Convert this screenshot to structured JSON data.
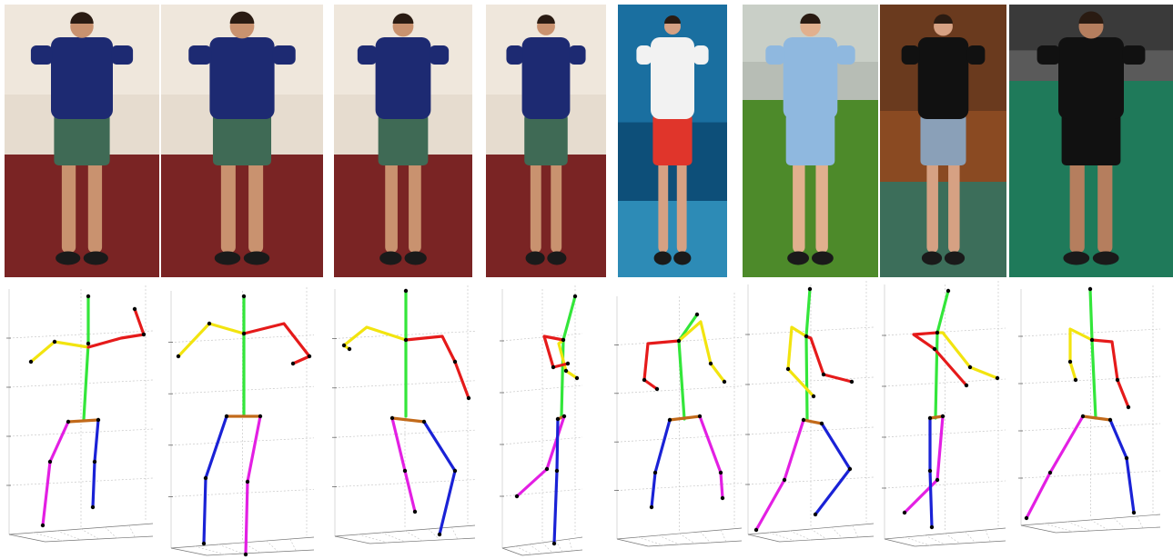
{
  "figure": {
    "photos": [
      {
        "id": "lab-1",
        "scene": "lab",
        "shirt": "#1d2a72",
        "shorts": "#3f6a55",
        "skin": "#c9926f"
      },
      {
        "id": "lab-2",
        "scene": "lab",
        "shirt": "#1d2a72",
        "shorts": "#3f6a55",
        "skin": "#c9926f"
      },
      {
        "id": "lab-3",
        "scene": "lab",
        "shirt": "#1d2a72",
        "shorts": "#3f6a55",
        "skin": "#c9926f"
      },
      {
        "id": "lab-4",
        "scene": "lab",
        "shirt": "#1d2a72",
        "shorts": "#3f6a55",
        "skin": "#c9926f"
      },
      {
        "id": "tennis",
        "scene": "court",
        "shirt": "#f2f2f2",
        "shorts": "#e0352b",
        "skin": "#d6a183"
      },
      {
        "id": "soccer",
        "scene": "grass",
        "shirt": "#8fb8df",
        "shorts": "#8fb8df",
        "skin": "#e1b08e"
      },
      {
        "id": "badminton-1",
        "scene": "hall",
        "shirt": "#111111",
        "shorts": "#8aa0b8",
        "skin": "#d6a183"
      },
      {
        "id": "badminton-2",
        "scene": "gym",
        "shirt": "#111111",
        "shorts": "#111111",
        "skin": "#b57e5e"
      }
    ],
    "pose_colors": {
      "spine": "#33e63a",
      "left_arm": "#f2e40f",
      "right_arm": "#e51a1a",
      "left_leg": "#e31fe3",
      "right_leg": "#1a22d6",
      "hip": "#c26a1a",
      "joint": "#000000",
      "grid": "#c8c8c8"
    }
  }
}
